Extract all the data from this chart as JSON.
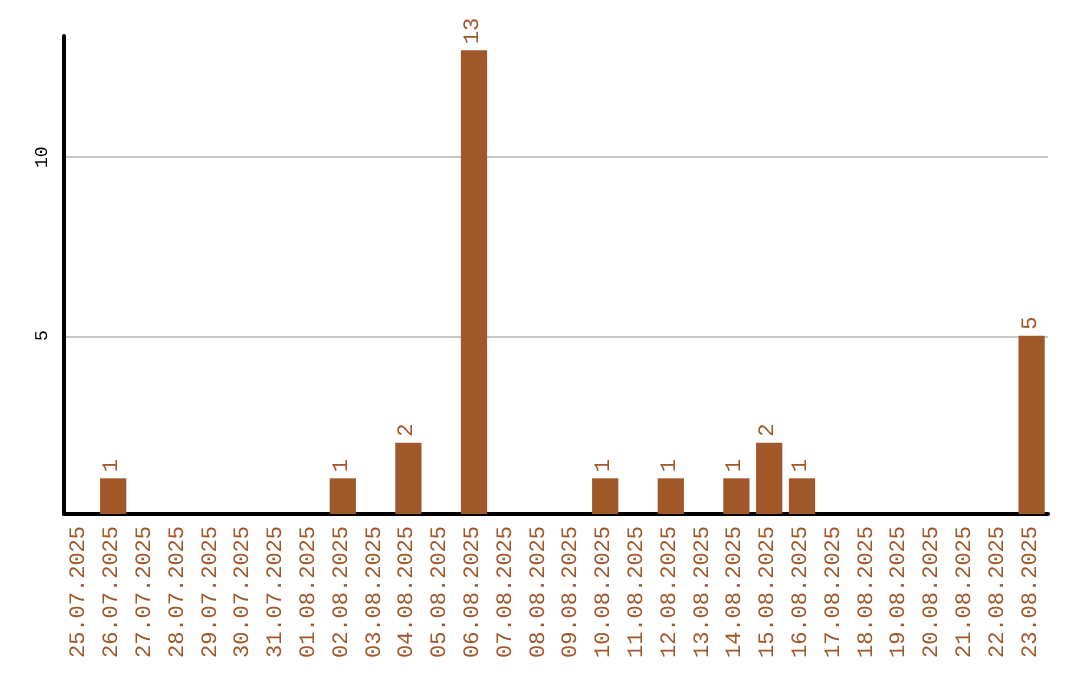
{
  "chart_data": {
    "type": "bar",
    "categories": [
      "25.07.2025",
      "26.07.2025",
      "27.07.2025",
      "28.07.2025",
      "29.07.2025",
      "30.07.2025",
      "31.07.2025",
      "01.08.2025",
      "02.08.2025",
      "03.08.2025",
      "04.08.2025",
      "05.08.2025",
      "06.08.2025",
      "07.08.2025",
      "08.08.2025",
      "09.08.2025",
      "10.08.2025",
      "11.08.2025",
      "12.08.2025",
      "13.08.2025",
      "14.08.2025",
      "15.08.2025",
      "16.08.2025",
      "17.08.2025",
      "18.08.2025",
      "19.08.2025",
      "20.08.2025",
      "21.08.2025",
      "22.08.2025",
      "23.08.2025"
    ],
    "values": [
      0,
      1,
      0,
      0,
      0,
      0,
      0,
      0,
      1,
      0,
      2,
      0,
      13,
      0,
      0,
      0,
      1,
      0,
      1,
      0,
      1,
      2,
      1,
      0,
      0,
      0,
      0,
      0,
      0,
      5
    ],
    "value_labels": [
      null,
      "1",
      null,
      null,
      null,
      null,
      null,
      null,
      "1",
      null,
      "2",
      null,
      "13",
      null,
      null,
      null,
      "1",
      null,
      "1",
      null,
      "1",
      "2",
      "1",
      null,
      null,
      null,
      null,
      null,
      null,
      "5"
    ],
    "color": "#a0572a",
    "ylim": [
      0,
      13.4
    ],
    "yticks": [
      5,
      10
    ],
    "grid": "y"
  }
}
